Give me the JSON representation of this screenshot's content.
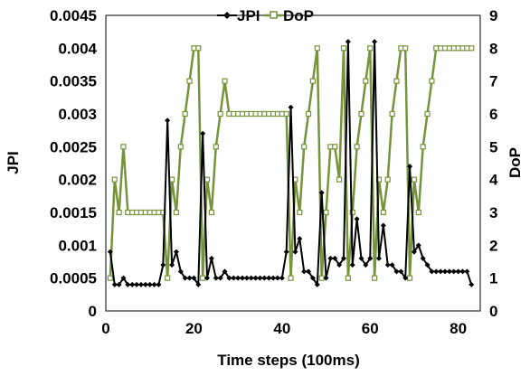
{
  "chart_data": {
    "type": "line",
    "xlabel": "Time steps (100ms)",
    "ylabel_left": "JPI",
    "ylabel_right": "DoP",
    "x_ticks": [
      0,
      20,
      40,
      60,
      80
    ],
    "x_tick_labels": [
      "0",
      "20",
      "40",
      "60",
      "80"
    ],
    "xlim": [
      0,
      85
    ],
    "y_left_ticks": [
      0,
      0.0005,
      0.001,
      0.0015,
      0.002,
      0.0025,
      0.003,
      0.0035,
      0.004,
      0.0045
    ],
    "y_left_tick_labels": [
      "0",
      "0.0005",
      "0.001",
      "0.0015",
      "0.002",
      "0.0025",
      "0.003",
      "0.0035",
      "0.004",
      "0.0045"
    ],
    "ylim_left": [
      0,
      0.0045
    ],
    "y_right_ticks": [
      0,
      1,
      2,
      3,
      4,
      5,
      6,
      7,
      8,
      9
    ],
    "y_right_tick_labels": [
      "0",
      "1",
      "2",
      "3",
      "4",
      "5",
      "6",
      "7",
      "8",
      "9"
    ],
    "ylim_right": [
      0,
      9
    ],
    "legend_position": "top",
    "grid": false,
    "x": [
      1,
      2,
      3,
      4,
      5,
      6,
      7,
      8,
      9,
      10,
      11,
      12,
      13,
      14,
      15,
      16,
      17,
      18,
      19,
      20,
      21,
      22,
      23,
      24,
      25,
      26,
      27,
      28,
      29,
      30,
      31,
      32,
      33,
      34,
      35,
      36,
      37,
      38,
      39,
      40,
      41,
      42,
      43,
      44,
      45,
      46,
      47,
      48,
      49,
      50,
      51,
      52,
      53,
      54,
      55,
      56,
      57,
      58,
      59,
      60,
      61,
      62,
      63,
      64,
      65,
      66,
      67,
      68,
      69,
      70,
      71,
      72,
      73,
      74,
      75,
      76,
      77,
      78,
      79,
      80,
      81,
      82,
      83
    ],
    "series": [
      {
        "name": "JPI",
        "axis": "left",
        "color": "#000000",
        "values": [
          0.0009,
          0.0004,
          0.0004,
          0.0005,
          0.0004,
          0.0004,
          0.0004,
          0.0004,
          0.0004,
          0.0004,
          0.0004,
          0.0004,
          0.0007,
          0.0029,
          0.0007,
          0.0009,
          0.0006,
          0.0005,
          0.0005,
          0.0005,
          0.0004,
          0.0027,
          0.0005,
          0.0008,
          0.0005,
          0.0005,
          0.0006,
          0.0005,
          0.0005,
          0.0005,
          0.0005,
          0.0005,
          0.0005,
          0.0005,
          0.0005,
          0.0005,
          0.0005,
          0.0005,
          0.0005,
          0.0005,
          0.0009,
          0.0031,
          0.0009,
          0.0011,
          0.0006,
          0.0006,
          0.0005,
          0.0004,
          0.0018,
          0.0005,
          0.0008,
          0.0008,
          0.0007,
          0.0008,
          0.0041,
          0.0007,
          0.0014,
          0.0008,
          0.0007,
          0.0008,
          0.0041,
          0.0008,
          0.0013,
          0.0007,
          0.0007,
          0.0006,
          0.0006,
          0.0005,
          0.0022,
          0.0009,
          0.001,
          0.0008,
          0.0007,
          0.0006,
          0.0006,
          0.0006,
          0.0006,
          0.0006,
          0.0006,
          0.0006,
          0.0006,
          0.0006,
          0.0004
        ]
      },
      {
        "name": "DoP",
        "axis": "right",
        "color": "#77933C",
        "values": [
          1,
          4,
          3,
          5,
          3,
          3,
          3,
          3,
          3,
          3,
          3,
          3,
          3,
          1,
          4,
          3,
          5,
          6,
          7,
          8,
          8,
          1,
          4,
          3,
          5,
          6,
          7,
          6,
          6,
          6,
          6,
          6,
          6,
          6,
          6,
          6,
          6,
          6,
          6,
          6,
          6,
          1,
          4,
          3,
          5,
          6,
          7,
          8,
          1,
          3,
          5,
          5,
          4,
          8,
          1,
          3,
          5,
          6,
          7,
          8,
          1,
          4,
          3,
          4,
          6,
          7,
          8,
          8,
          1,
          4,
          3,
          5,
          6,
          7,
          8,
          8,
          8,
          8,
          8,
          8,
          8,
          8,
          8
        ]
      }
    ]
  }
}
